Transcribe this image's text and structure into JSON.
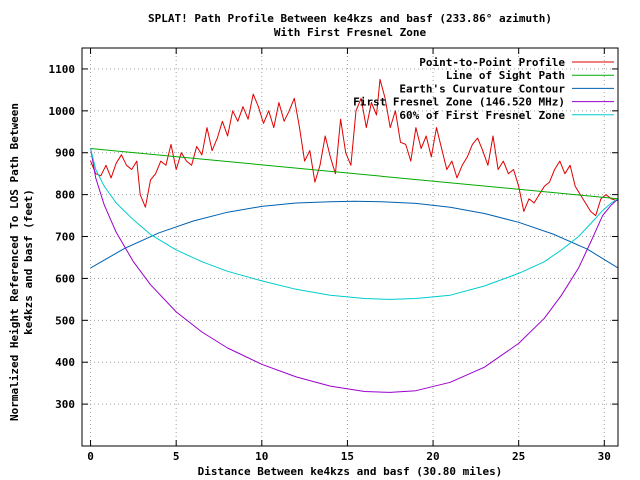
{
  "chart_data": {
    "type": "line",
    "title": "SPLAT! Path Profile Between ke4kzs and basf (233.86° azimuth)",
    "subtitle": "With First Fresnel Zone",
    "xlabel": "Distance Between ke4kzs and basf (30.80 miles)",
    "ylabel_line1": "Normalized Height Referenced To LOS Path Between",
    "ylabel_line2": "ke4kzs and basf (feet)",
    "xlim": [
      -0.5,
      30.8
    ],
    "ylim": [
      200,
      1150
    ],
    "xticks": [
      0,
      5,
      10,
      15,
      20,
      25,
      30
    ],
    "yticks": [
      300,
      400,
      500,
      600,
      700,
      800,
      900,
      1000,
      1100
    ],
    "grid": true,
    "legend_position": "top-right",
    "series": [
      {
        "name": "Point-to-Point Profile",
        "color": "#e00000",
        "x": [
          0,
          0.3,
          0.6,
          0.9,
          1.2,
          1.5,
          1.8,
          2.1,
          2.4,
          2.7,
          2.9,
          3.2,
          3.5,
          3.8,
          4.1,
          4.4,
          4.7,
          5.0,
          5.3,
          5.6,
          5.9,
          6.2,
          6.5,
          6.8,
          7.1,
          7.4,
          7.7,
          8.0,
          8.3,
          8.6,
          8.9,
          9.2,
          9.5,
          9.8,
          10.1,
          10.4,
          10.7,
          11.0,
          11.3,
          11.6,
          11.9,
          12.2,
          12.5,
          12.8,
          13.1,
          13.4,
          13.7,
          14.0,
          14.3,
          14.6,
          14.9,
          15.2,
          15.5,
          15.8,
          16.1,
          16.4,
          16.7,
          16.9,
          17.2,
          17.5,
          17.8,
          18.1,
          18.4,
          18.7,
          19.0,
          19.3,
          19.6,
          19.9,
          20.2,
          20.5,
          20.8,
          21.1,
          21.4,
          21.7,
          22.0,
          22.3,
          22.6,
          22.9,
          23.2,
          23.5,
          23.8,
          24.1,
          24.4,
          24.7,
          25.0,
          25.3,
          25.6,
          25.9,
          26.2,
          26.5,
          26.8,
          27.1,
          27.4,
          27.7,
          28.0,
          28.3,
          28.6,
          28.9,
          29.2,
          29.5,
          29.8,
          30.1,
          30.4,
          30.8
        ],
        "y": [
          880,
          850,
          845,
          870,
          840,
          875,
          895,
          870,
          860,
          880,
          800,
          770,
          835,
          850,
          880,
          870,
          920,
          860,
          900,
          880,
          870,
          915,
          895,
          960,
          905,
          935,
          975,
          940,
          1000,
          975,
          1010,
          980,
          1040,
          1010,
          970,
          1000,
          960,
          1020,
          975,
          1000,
          1030,
          960,
          880,
          905,
          830,
          870,
          940,
          890,
          850,
          980,
          900,
          870,
          1000,
          1030,
          960,
          1020,
          990,
          1075,
          1030,
          960,
          1000,
          925,
          920,
          880,
          960,
          910,
          940,
          890,
          960,
          910,
          860,
          880,
          840,
          870,
          890,
          920,
          935,
          905,
          870,
          940,
          860,
          880,
          850,
          860,
          820,
          760,
          790,
          780,
          800,
          820,
          830,
          860,
          880,
          850,
          870,
          820,
          800,
          780,
          760,
          750,
          790,
          800,
          790,
          785
        ]
      },
      {
        "name": "Line of Sight Path",
        "color": "#00aa00",
        "x": [
          0,
          30.8
        ],
        "y": [
          910,
          790
        ]
      },
      {
        "name": "Earth's Curvature Contour",
        "color": "#0060b0",
        "x": [
          0,
          2,
          4,
          6,
          8,
          10,
          12,
          14,
          15.4,
          17,
          19,
          21,
          23,
          25,
          27,
          29,
          30.8
        ],
        "y": [
          625,
          672,
          709,
          737,
          758,
          772,
          780,
          783,
          784,
          783,
          779,
          770,
          755,
          734,
          706,
          670,
          625
        ]
      },
      {
        "name": "First Fresnel Zone (146.520 MHz)",
        "color": "#9900cc",
        "x": [
          0,
          0.3,
          0.8,
          1.5,
          2.5,
          3.5,
          5,
          6.5,
          8,
          10,
          12,
          14,
          16,
          17.5,
          19,
          21,
          23,
          25,
          26.5,
          27.5,
          28.5,
          29.3,
          29.9,
          30.4,
          30.8
        ],
        "y": [
          910,
          840,
          775,
          710,
          640,
          585,
          520,
          472,
          434,
          395,
          365,
          343,
          330,
          328,
          332,
          352,
          388,
          445,
          505,
          560,
          625,
          695,
          750,
          775,
          790
        ]
      },
      {
        "name": "60% of First Fresnel Zone",
        "color": "#00cccc",
        "x": [
          0,
          0.3,
          0.8,
          1.5,
          2.5,
          3.5,
          5,
          6.5,
          8,
          10,
          12,
          14,
          16,
          17.5,
          19,
          21,
          23,
          25,
          26.5,
          27.5,
          28.5,
          29.3,
          29.9,
          30.4,
          30.8
        ],
        "y": [
          910,
          860,
          820,
          780,
          740,
          705,
          668,
          640,
          617,
          594,
          574,
          560,
          552,
          550,
          552,
          560,
          582,
          612,
          640,
          668,
          700,
          735,
          762,
          780,
          790
        ]
      }
    ]
  }
}
